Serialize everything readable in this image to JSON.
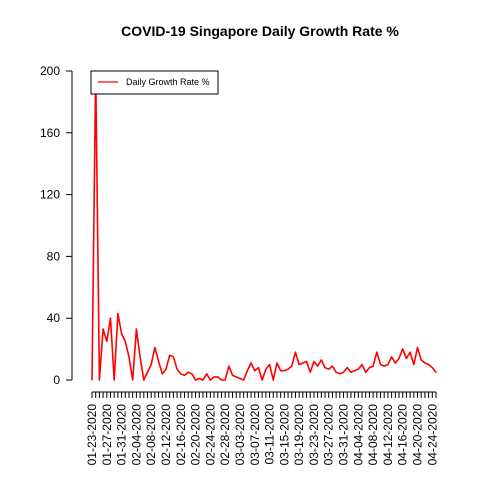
{
  "chart_data": {
    "type": "line",
    "title": "COVID-19 Singapore Daily Growth Rate %",
    "xlabel": "",
    "ylabel": "",
    "ylim": [
      0,
      200
    ],
    "yticks": [
      0,
      40,
      80,
      120,
      160,
      200
    ],
    "xticks": [
      "01-23-2020",
      "01-27-2020",
      "01-31-2020",
      "02-04-2020",
      "02-08-2020",
      "02-12-2020",
      "02-16-2020",
      "02-20-2020",
      "02-24-2020",
      "02-28-2020",
      "03-03-2020",
      "03-07-2020",
      "03-11-2020",
      "03-15-2020",
      "03-19-2020",
      "03-23-2020",
      "03-27-2020",
      "03-31-2020",
      "04-04-2020",
      "04-08-2020",
      "04-12-2020",
      "04-16-2020",
      "04-20-2020",
      "04-24-2020"
    ],
    "grid": false,
    "legend": {
      "position": "top-left",
      "entries": [
        "Daily Growth Rate %"
      ]
    },
    "series": [
      {
        "name": "Daily Growth Rate %",
        "color": "#ff0000",
        "values": [
          0,
          200,
          0,
          33,
          25,
          40,
          0,
          43,
          30,
          25,
          15,
          0,
          33,
          15,
          0,
          5,
          10,
          21,
          12,
          4,
          7,
          16,
          15,
          7,
          4,
          3,
          5,
          4,
          0,
          1,
          0,
          4,
          0,
          2,
          2,
          0,
          0,
          9,
          3,
          2,
          1,
          0,
          6,
          11,
          6,
          8,
          0,
          7,
          10,
          0,
          11,
          6,
          6,
          7,
          9,
          18,
          10,
          11,
          12,
          5,
          12,
          9,
          13,
          8,
          7,
          9,
          5,
          4,
          5,
          8,
          5,
          6,
          7,
          10,
          5,
          8,
          9,
          18,
          10,
          9,
          10,
          15,
          11,
          14,
          20,
          14,
          18,
          10,
          21,
          13,
          11,
          10,
          8,
          5
        ]
      }
    ]
  }
}
